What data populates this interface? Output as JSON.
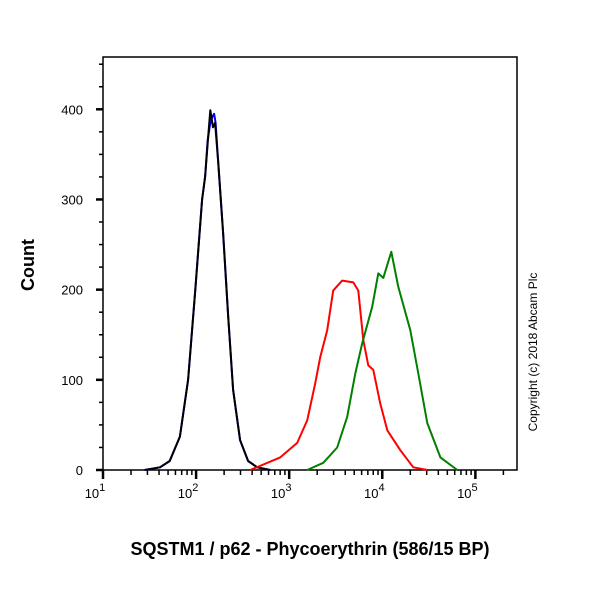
{
  "chart_data": {
    "type": "line",
    "xlabel": "SQSTM1 / p62 - Phycoerythrin (586/15 BP)",
    "ylabel": "Count",
    "x_scale": "log",
    "xlim": [
      10,
      280000
    ],
    "ylim": [
      0,
      458
    ],
    "x_ticks": [
      {
        "base": "10",
        "exp": "1",
        "value": 10
      },
      {
        "base": "10",
        "exp": "2",
        "value": 100
      },
      {
        "base": "10",
        "exp": "3",
        "value": 1000
      },
      {
        "base": "10",
        "exp": "4",
        "value": 10000
      },
      {
        "base": "10",
        "exp": "5",
        "value": 100000
      }
    ],
    "y_ticks": [
      "0",
      "100",
      "200",
      "300",
      "400"
    ],
    "grid": false,
    "annotation": "Copyright (c) 2018 Abcam Plc",
    "series": [
      {
        "color": "#0000ff",
        "x": [
          28,
          41,
          52,
          67,
          82,
          98,
          116,
          125,
          133,
          142,
          150,
          156,
          162,
          173,
          195,
          221,
          250,
          297,
          362,
          453,
          625
        ],
        "y": [
          0,
          3,
          10,
          37,
          100,
          200,
          300,
          325,
          365,
          385,
          392,
          395,
          385,
          340,
          263,
          170,
          89,
          33,
          10,
          3,
          0
        ]
      },
      {
        "color": "#000000",
        "x": [
          28,
          41,
          52,
          67,
          82,
          98,
          116,
          125,
          135,
          142,
          152,
          160,
          173,
          195,
          221,
          250,
          297,
          362,
          453,
          625
        ],
        "y": [
          0,
          3,
          10,
          37,
          100,
          200,
          300,
          325,
          370,
          399,
          380,
          385,
          340,
          263,
          170,
          89,
          33,
          10,
          3,
          0
        ]
      },
      {
        "color": "#ff0000",
        "x": [
          381,
          800,
          1219,
          1563,
          1905,
          2154,
          2563,
          2972,
          3715,
          4879,
          5521,
          6252,
          7069,
          8000,
          9506,
          11324,
          15630,
          21544,
          30467
        ],
        "y": [
          0,
          14,
          30,
          55,
          96,
          125,
          155,
          199,
          210,
          208,
          199,
          144,
          116,
          111,
          74,
          44,
          22,
          3,
          0
        ]
      },
      {
        "color": "#008000",
        "x": [
          1563,
          2323,
          3281,
          4204,
          5129,
          6095,
          7797,
          9057,
          10257,
          12500,
          14870,
          20012,
          24378,
          30467,
          42100,
          63963
        ],
        "y": [
          0,
          8,
          25,
          59,
          107,
          141,
          181,
          218,
          213,
          242,
          203,
          155,
          107,
          52,
          14,
          0
        ]
      }
    ]
  }
}
